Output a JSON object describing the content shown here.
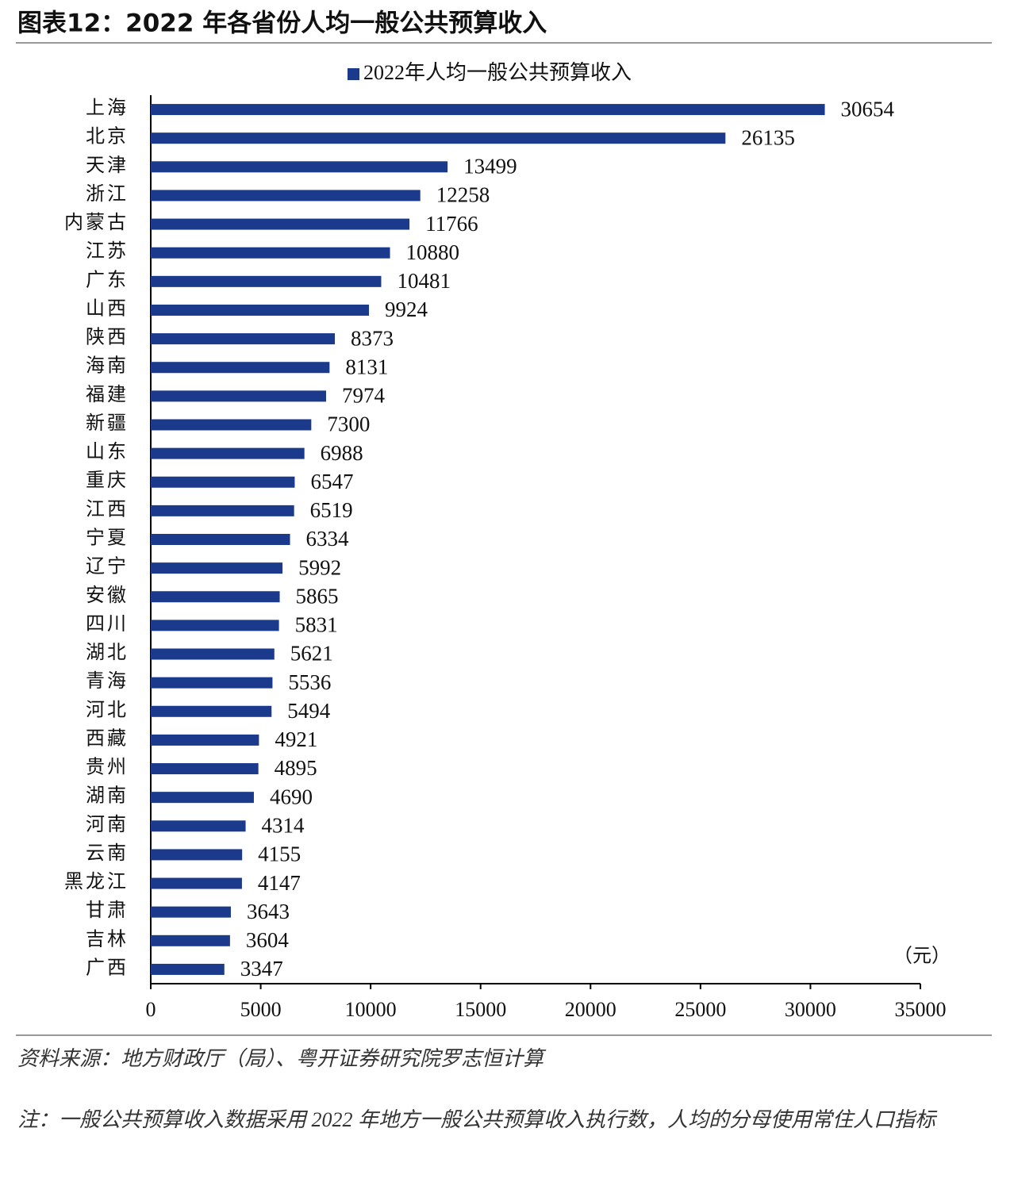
{
  "chart_data": {
    "type": "hbar",
    "title": "图表12：2022 年各省份人均一般公共预算收入",
    "series_name": "2022年人均一般公共预算收入",
    "color": "#1c3a8c",
    "categories": [
      "上海",
      "北京",
      "天津",
      "浙江",
      "内蒙古",
      "江苏",
      "广东",
      "山西",
      "陕西",
      "海南",
      "福建",
      "新疆",
      "山东",
      "重庆",
      "江西",
      "宁夏",
      "辽宁",
      "安徽",
      "四川",
      "湖北",
      "青海",
      "河北",
      "西藏",
      "贵州",
      "湖南",
      "河南",
      "云南",
      "黑龙江",
      "甘肃",
      "吉林",
      "广西"
    ],
    "values": [
      30654,
      26135,
      13499,
      12258,
      11766,
      10880,
      10481,
      9924,
      8373,
      8131,
      7974,
      7300,
      6988,
      6547,
      6519,
      6334,
      5992,
      5865,
      5831,
      5621,
      5536,
      5494,
      4921,
      4895,
      4690,
      4314,
      4155,
      4147,
      3643,
      3604,
      3347
    ],
    "xlim": [
      0,
      35000
    ],
    "xticks": [
      0,
      5000,
      10000,
      15000,
      20000,
      25000,
      30000,
      35000
    ],
    "unit_label": "（元）",
    "source": "资料来源：地方财政厅（局）、粤开证券研究院罗志恒计算",
    "note": "注：一般公共预算收入数据采用 2022 年地方一般公共预算收入执行数，人均的分母使用常住人口指标"
  }
}
